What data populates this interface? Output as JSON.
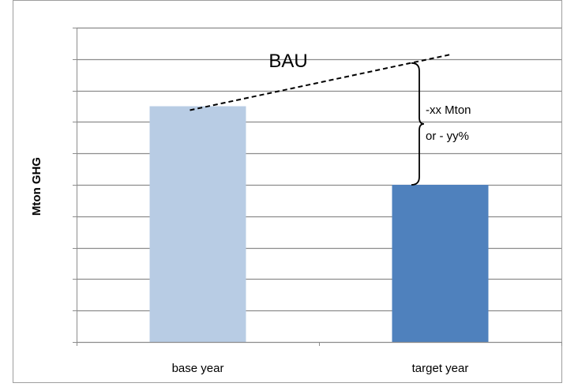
{
  "chart_data": {
    "type": "bar",
    "title": "",
    "xlabel": "",
    "ylabel": "Mton GHG",
    "categories": [
      "base year",
      "target year"
    ],
    "values": [
      7.5,
      5.0
    ],
    "ylim": [
      0,
      10
    ],
    "y_tick_labels_shown": false,
    "grid": true,
    "bar_colors": [
      "#b8cce4",
      "#4f81bd"
    ],
    "annotations": {
      "bau_label": "BAU",
      "bau_line": {
        "from": [
          "base year",
          7.5
        ],
        "to": [
          "target year",
          9.1
        ]
      },
      "reduction_line1": "-xx Mton",
      "reduction_line2": "or - yy%"
    }
  }
}
